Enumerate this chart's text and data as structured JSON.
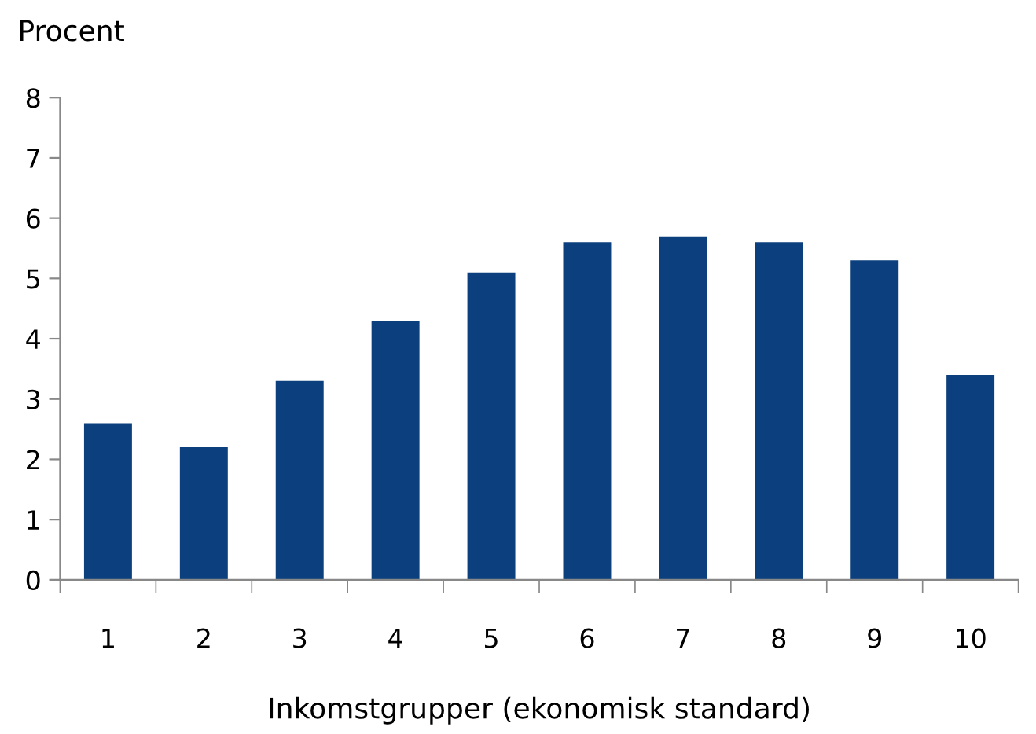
{
  "chart_data": {
    "type": "bar",
    "ylabel": "Procent",
    "xlabel": "Inkomstgrupper (ekonomisk standard)",
    "categories": [
      "1",
      "2",
      "3",
      "4",
      "5",
      "6",
      "7",
      "8",
      "9",
      "10"
    ],
    "values": [
      2.6,
      2.2,
      3.3,
      4.3,
      5.1,
      5.6,
      5.7,
      5.6,
      5.3,
      3.4
    ],
    "color": "#0b3f7d",
    "ylim": [
      0,
      8
    ],
    "yticks": [
      0,
      1,
      2,
      3,
      4,
      5,
      6,
      7,
      8
    ],
    "grid": false
  }
}
